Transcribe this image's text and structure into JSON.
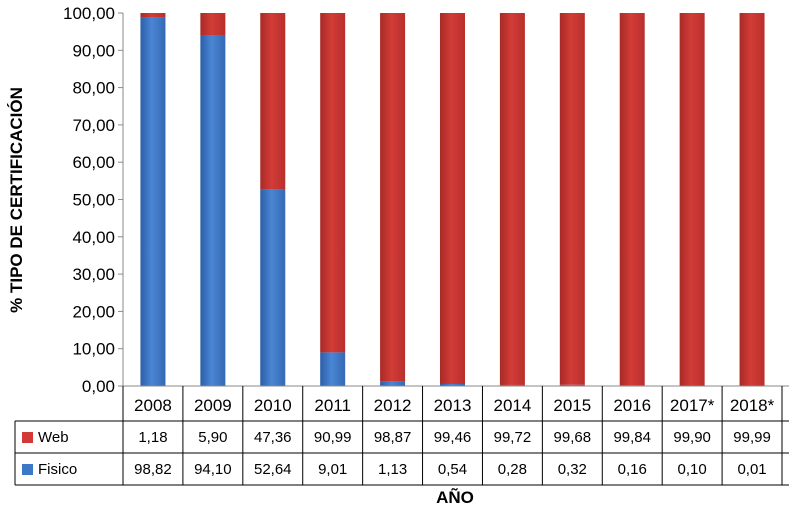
{
  "chart_data": {
    "type": "bar",
    "stacked": true,
    "percent_stacked": true,
    "categories": [
      "2008",
      "2009",
      "2010",
      "2011",
      "2012",
      "2013",
      "2014",
      "2015",
      "2016",
      "2017*",
      "2018*"
    ],
    "series": [
      {
        "name": "Web",
        "color": "#d13a36",
        "values": [
          1.18,
          5.9,
          47.36,
          90.99,
          98.87,
          99.46,
          99.72,
          99.68,
          99.84,
          99.9,
          99.99
        ],
        "labels": [
          "1,18",
          "5,90",
          "47,36",
          "90,99",
          "98,87",
          "99,46",
          "99,72",
          "99,68",
          "99,84",
          "99,90",
          "99,99"
        ]
      },
      {
        "name": "Fisico",
        "color": "#3d78c8",
        "values": [
          98.82,
          94.1,
          52.64,
          9.01,
          1.13,
          0.54,
          0.28,
          0.32,
          0.16,
          0.1,
          0.01
        ],
        "labels": [
          "98,82",
          "94,10",
          "52,64",
          "9,01",
          "1,13",
          "0,54",
          "0,28",
          "0,32",
          "0,16",
          "0,10",
          "0,01"
        ]
      }
    ],
    "title": "",
    "xlabel": "AÑO",
    "ylabel": "% TIPO DE CERTIFICACIÓN",
    "ylim": [
      0,
      100
    ],
    "yticks": [
      "0,00",
      "10,00",
      "20,00",
      "30,00",
      "40,00",
      "50,00",
      "60,00",
      "70,00",
      "80,00",
      "90,00",
      "100,00"
    ],
    "grid": false,
    "legend": "data-table",
    "data_table": true
  }
}
